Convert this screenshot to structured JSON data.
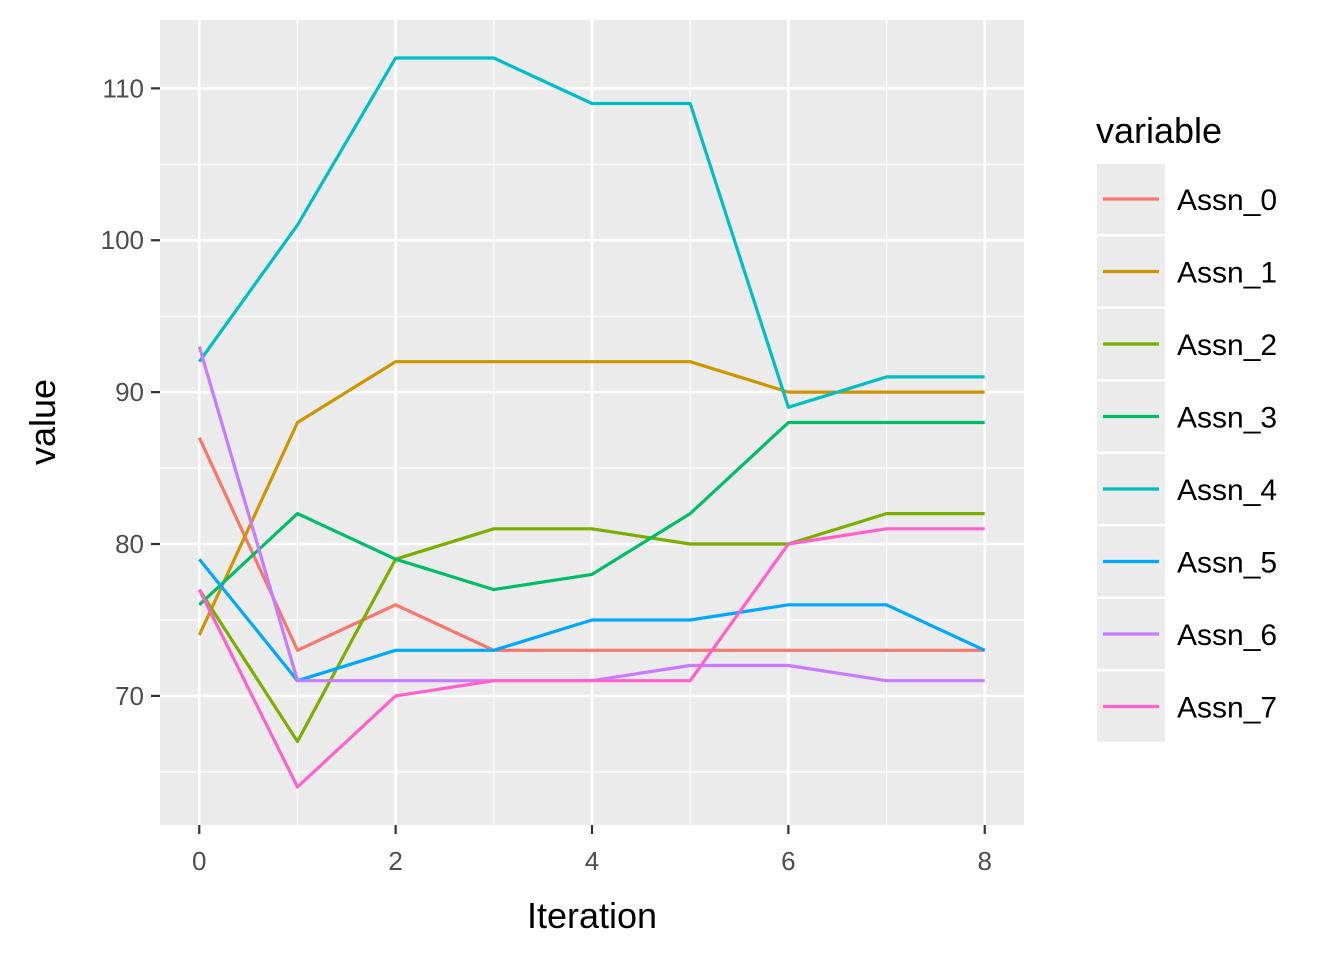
{
  "chart_data": {
    "type": "line",
    "xlabel": "Iteration",
    "ylabel": "value",
    "x": [
      0,
      1,
      2,
      3,
      4,
      5,
      6,
      7,
      8
    ],
    "xlim": [
      -0.4,
      8.4
    ],
    "ylim": [
      61.5,
      114.5
    ],
    "x_ticks": [
      0,
      2,
      4,
      6,
      8
    ],
    "y_ticks": [
      70,
      80,
      90,
      100,
      110
    ],
    "y_minor_ticks": [
      65,
      75,
      85,
      95,
      105
    ],
    "x_minor_ticks": [
      1,
      3,
      5,
      7
    ],
    "grid": true,
    "legend": {
      "title": "variable",
      "position": "right"
    },
    "series": [
      {
        "name": "Assn_0",
        "color": "#F8766D",
        "values": [
          87,
          73,
          76,
          73,
          73,
          73,
          73,
          73,
          73
        ]
      },
      {
        "name": "Assn_1",
        "color": "#CD9600",
        "values": [
          74,
          88,
          92,
          92,
          92,
          92,
          90,
          90,
          90
        ]
      },
      {
        "name": "Assn_2",
        "color": "#7CAE00",
        "values": [
          77,
          67,
          79,
          81,
          81,
          80,
          80,
          82,
          82
        ]
      },
      {
        "name": "Assn_3",
        "color": "#00BE67",
        "values": [
          76,
          82,
          79,
          77,
          78,
          82,
          88,
          88,
          88
        ]
      },
      {
        "name": "Assn_4",
        "color": "#00BFC4",
        "values": [
          92,
          101,
          112,
          112,
          109,
          109,
          89,
          91,
          91
        ]
      },
      {
        "name": "Assn_5",
        "color": "#00A9FF",
        "values": [
          79,
          71,
          73,
          73,
          75,
          75,
          76,
          76,
          73
        ]
      },
      {
        "name": "Assn_6",
        "color": "#C77CFF",
        "values": [
          93,
          71,
          71,
          71,
          71,
          72,
          72,
          71,
          71
        ]
      },
      {
        "name": "Assn_7",
        "color": "#FF61CC",
        "values": [
          77,
          64,
          70,
          71,
          71,
          71,
          80,
          81,
          81
        ]
      }
    ]
  }
}
